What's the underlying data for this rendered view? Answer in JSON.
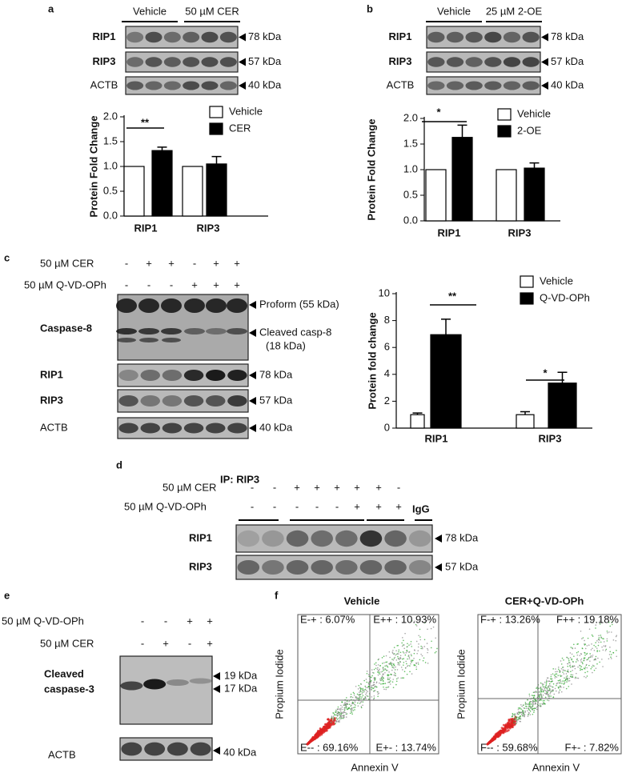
{
  "chart_data": [
    {
      "type": "bar",
      "ylabel": "Protein Fold Change",
      "categories": [
        "RIP1",
        "RIP3"
      ],
      "series": [
        {
          "name": "Vehicle",
          "color": "#ffffff",
          "values": [
            1,
            1
          ]
        },
        {
          "name": "CER",
          "color": "#000000",
          "values": [
            1.32,
            1.05
          ],
          "errors": [
            0.07,
            0.15
          ]
        }
      ],
      "ylim": [
        0,
        2.0
      ],
      "yticks": [
        {
          "value": 0,
          "label": "0.0"
        },
        {
          "value": 0.5,
          "label": "0.5"
        },
        {
          "value": 1,
          "label": "1.0"
        },
        {
          "value": 1.5,
          "label": "1.5"
        },
        {
          "value": 2,
          "label": "2.0"
        }
      ],
      "annotations": [
        "**"
      ]
    },
    {
      "type": "bar",
      "ylabel": "Protein Fold Change",
      "categories": [
        "RIP1",
        "RIP3"
      ],
      "series": [
        {
          "name": "Vehicle",
          "color": "#ffffff",
          "values": [
            1,
            1
          ]
        },
        {
          "name": "2-OE",
          "color": "#000000",
          "values": [
            1.63,
            1.03
          ],
          "errors": [
            0.24,
            0.1
          ]
        }
      ],
      "ylim": [
        0,
        2.0
      ],
      "yticks": [
        {
          "value": 0,
          "label": "0.0"
        },
        {
          "value": 0.5,
          "label": "0.5"
        },
        {
          "value": 1,
          "label": "1.0"
        },
        {
          "value": 1.5,
          "label": "1.5"
        },
        {
          "value": 2,
          "label": "2.0"
        }
      ],
      "annotations": [
        "*"
      ]
    },
    {
      "type": "bar",
      "ylabel": "Protein fold change",
      "categories": [
        "RIP1",
        "RIP3"
      ],
      "series": [
        {
          "name": "Vehicle",
          "color": "#ffffff",
          "values": [
            1,
            1
          ],
          "errors": [
            0.12,
            0.22
          ]
        },
        {
          "name": "Q-VD-OPh",
          "color": "#000000",
          "values": [
            6.95,
            3.35
          ],
          "errors": [
            1.15,
            0.8
          ]
        }
      ],
      "ylim": [
        0,
        10
      ],
      "yticks": [
        0,
        2,
        4,
        6,
        8,
        10
      ],
      "annotations": [
        "**",
        "*"
      ]
    }
  ],
  "panels": {
    "a": {
      "letter": "a",
      "groups": [
        "Vehicle",
        "50 µM CER"
      ],
      "blots": [
        {
          "label": "RIP1",
          "size": "78 kDa"
        },
        {
          "label": "RIP3",
          "size": "57 kDa"
        },
        {
          "label": "ACTB",
          "size": "40 kDa"
        }
      ]
    },
    "b": {
      "letter": "b",
      "groups": [
        "Vehicle",
        "25 µM 2-OE"
      ],
      "blots": [
        {
          "label": "RIP1",
          "size": "78 kDa"
        },
        {
          "label": "RIP3",
          "size": "57 kDa"
        },
        {
          "label": "ACTB",
          "size": "40 kDa"
        }
      ]
    },
    "c": {
      "letter": "c",
      "treatments": [
        {
          "label": "50 µM CER",
          "signs": [
            "-",
            "+",
            "+",
            "-",
            "+",
            "+"
          ]
        },
        {
          "label": "50 µM Q-VD-OPh",
          "signs": [
            "-",
            "-",
            "-",
            "+",
            "+",
            "+"
          ]
        }
      ],
      "blots": [
        {
          "label": "Caspase-8",
          "sizes": [
            "Proform (55 kDa)",
            "Cleaved casp-8",
            "(18 kDa)"
          ]
        },
        {
          "label": "RIP1",
          "sizes": [
            "78 kDa"
          ]
        },
        {
          "label": "RIP3",
          "sizes": [
            "57 kDa"
          ]
        },
        {
          "label": "ACTB",
          "sizes": [
            "40 kDa"
          ]
        }
      ]
    },
    "d": {
      "letter": "d",
      "title": "IP: RIP3",
      "treatments": [
        {
          "label": "50 µM CER",
          "signs": [
            "-",
            "-",
            "+",
            "+",
            "+",
            "+",
            "+",
            "-"
          ]
        },
        {
          "label": "50 µM Q-VD-OPh",
          "signs": [
            "-",
            "-",
            "-",
            "-",
            "-",
            "+",
            "+",
            "+"
          ]
        }
      ],
      "control": "IgG",
      "blots": [
        {
          "label": "RIP1",
          "size": "78 kDa"
        },
        {
          "label": "RIP3",
          "size": "57 kDa"
        }
      ]
    },
    "e": {
      "letter": "e",
      "treatments": [
        {
          "label": "50 µM Q-VD-OPh",
          "signs": [
            "-",
            "-",
            "+",
            "+"
          ]
        },
        {
          "label": "50 µM CER",
          "signs": [
            "-",
            "+",
            "-",
            "+"
          ]
        }
      ],
      "blots": [
        {
          "label": [
            "Cleaved",
            "caspase-3"
          ],
          "sizes": [
            "19 kDa",
            "17 kDa"
          ]
        },
        {
          "label": [
            "ACTB"
          ],
          "sizes": [
            "40 kDa"
          ]
        }
      ]
    },
    "f": {
      "letter": "f",
      "xlabel": "Annexin V",
      "ylabel": "Propium Iodide",
      "plots": [
        {
          "title": "Vehicle",
          "quadrants": [
            "E-+ : 6.07%",
            "E++ : 10.93%",
            "E-- : 69.16%",
            "E+- : 13.74%"
          ]
        },
        {
          "title": "CER+Q-VD-OPh",
          "quadrants": [
            "F-+ : 13.26%",
            "F++ : 19.18%",
            "F-- : 59.68%",
            "F+- : 7.82%"
          ]
        }
      ]
    }
  }
}
